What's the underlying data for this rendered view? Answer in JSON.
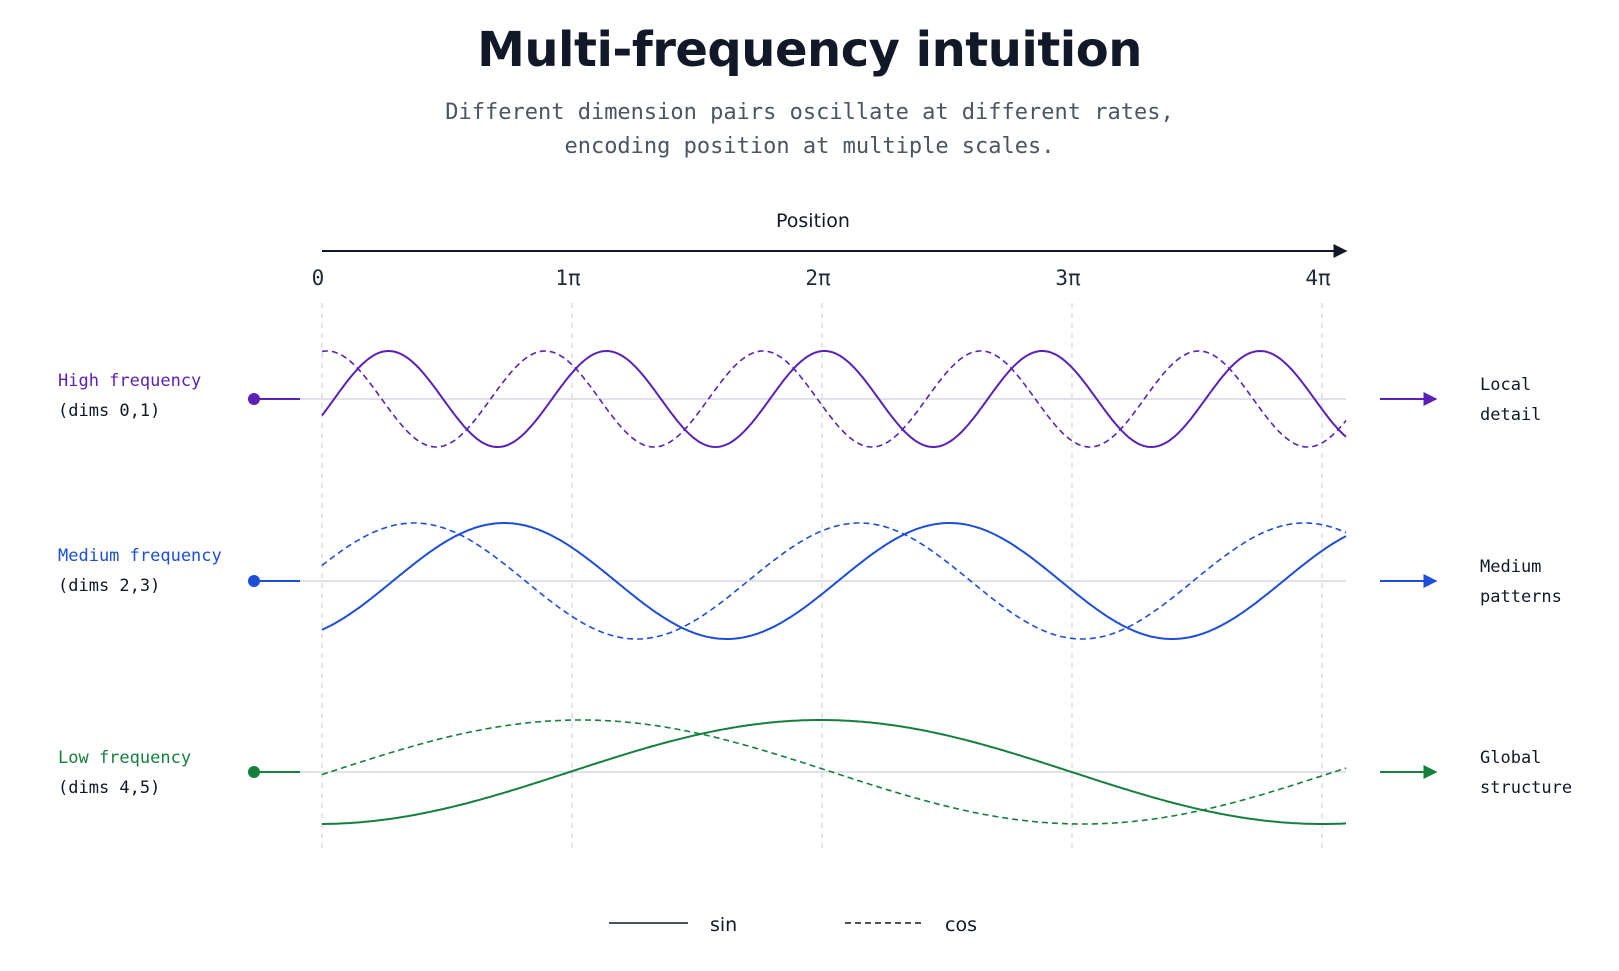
{
  "title": "Multi-frequency intuition",
  "subtitle_line1": "Different dimension pairs oscillate at different rates,",
  "subtitle_line2": "encoding position at multiple scales.",
  "axis": {
    "label": "Position",
    "ticks": [
      "0",
      "1π",
      "2π",
      "3π",
      "4π"
    ],
    "range": [
      0,
      4
    ]
  },
  "rows": [
    {
      "name": "High frequency",
      "dims": "(dims 0,1)",
      "meaning_line1": "Local",
      "meaning_line2": "detail",
      "color": "#5b21b6",
      "cycles_over_axis": 4.7
    },
    {
      "name": "Medium frequency",
      "dims": "(dims 2,3)",
      "meaning_line1": "Medium",
      "meaning_line2": "patterns",
      "color": "#1d4ed8",
      "cycles_over_axis": 2.3
    },
    {
      "name": "Low frequency",
      "dims": "(dims 4,5)",
      "meaning_line1": "Global",
      "meaning_line2": "structure",
      "color": "#15803d",
      "cycles_over_axis": 1.02
    }
  ],
  "legend": {
    "sin_label": "sin",
    "cos_label": "cos"
  }
}
